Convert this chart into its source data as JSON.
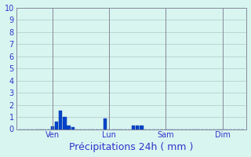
{
  "title": "Précipitations 24h ( mm )",
  "bar_color": "#0044cc",
  "bar_edge_color": "#003399",
  "background_color": "#d8f5f0",
  "grid_color": "#b0c8c8",
  "tick_label_color": "#3333cc",
  "axis_label_color": "#3333cc",
  "ylim": [
    0,
    10
  ],
  "yticks": [
    0,
    1,
    2,
    3,
    4,
    5,
    6,
    7,
    8,
    9,
    10
  ],
  "bar_values": [
    0,
    0,
    0,
    0,
    0,
    0,
    0,
    0,
    0.2,
    0.6,
    1.5,
    1.0,
    0.3,
    0.15,
    0,
    0,
    0,
    0,
    0,
    0,
    0,
    0.9,
    0.0,
    0,
    0,
    0,
    0,
    0,
    0.3,
    0.3,
    0.3,
    0,
    0,
    0,
    0,
    0,
    0,
    0,
    0,
    0,
    0,
    0,
    0,
    0,
    0,
    0,
    0,
    0,
    0,
    0,
    0,
    0,
    0,
    0,
    0,
    0
  ],
  "day_labels": [
    "Ven",
    "Lun",
    "Sam",
    "Dim"
  ],
  "day_positions": [
    8,
    22,
    36,
    50
  ],
  "xlabel_fontsize": 9,
  "tick_fontsize": 7,
  "spine_color": "#888899"
}
